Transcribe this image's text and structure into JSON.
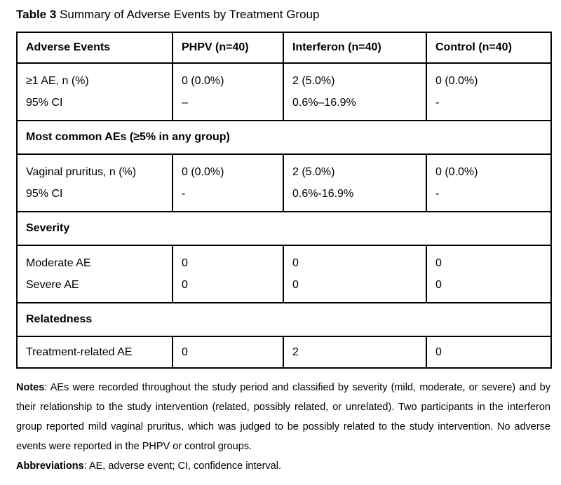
{
  "title": {
    "label": "Table 3",
    "text": "Summary of Adverse Events by Treatment Group"
  },
  "table": {
    "header": [
      "Adverse Events",
      "PHPV (n=40)",
      "Interferon (n=40)",
      "Control (n=40)"
    ],
    "rows": [
      {
        "type": "data",
        "cells": [
          [
            "≥1 AE, n (%)",
            "95% CI"
          ],
          [
            "0 (0.0%)",
            "–"
          ],
          [
            "2 (5.0%)",
            "0.6%–16.9%"
          ],
          [
            "0 (0.0%)",
            "-"
          ]
        ]
      },
      {
        "type": "section",
        "label": "Most common AEs (≥5% in any group)"
      },
      {
        "type": "data",
        "cells": [
          [
            "Vaginal pruritus, n (%)",
            "95% CI"
          ],
          [
            "0 (0.0%)",
            "-"
          ],
          [
            "2 (5.0%)",
            "0.6%-16.9%"
          ],
          [
            "0 (0.0%)",
            "-"
          ]
        ]
      },
      {
        "type": "section",
        "label": "Severity"
      },
      {
        "type": "data",
        "cells": [
          [
            "Moderate AE",
            "Severe AE"
          ],
          [
            "0",
            "0"
          ],
          [
            "0",
            "0"
          ],
          [
            "0",
            "0"
          ]
        ]
      },
      {
        "type": "section",
        "label": "Relatedness"
      },
      {
        "type": "data",
        "cells": [
          [
            "Treatment-related AE"
          ],
          [
            "0"
          ],
          [
            "2"
          ],
          [
            "0"
          ]
        ]
      }
    ]
  },
  "notes": {
    "label": "Notes",
    "text": ": AEs were recorded throughout the study period and classified by severity (mild, moderate, or severe) and by their relationship to the study intervention (related, possibly related, or unrelated). Two participants in the interferon group reported mild vaginal pruritus, which was judged to be possibly related to the study intervention. No adverse events were reported in the PHPV or control groups."
  },
  "abbreviations": {
    "label": "Abbreviations",
    "text": ": AE, adverse event; CI, confidence interval."
  },
  "colors": {
    "text": "#000000",
    "background": "#ffffff",
    "border": "#000000"
  }
}
